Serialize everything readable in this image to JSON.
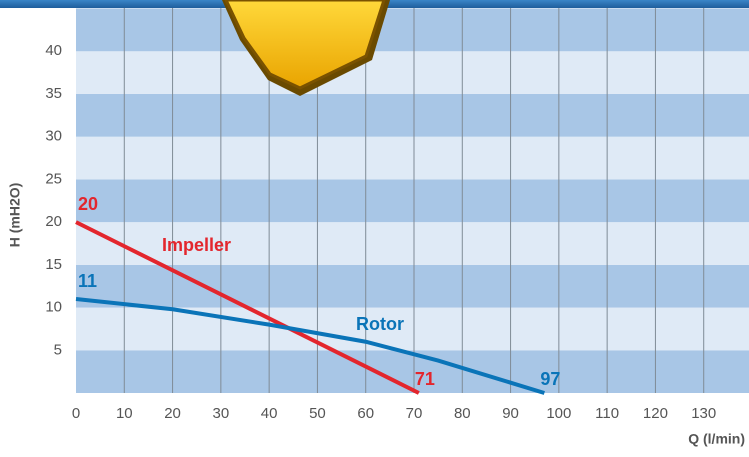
{
  "chart_data": {
    "type": "line",
    "xlabel": "Q (l/min)",
    "ylabel": "H (mH2O)",
    "xlim": [
      0,
      140
    ],
    "xticks": [
      0,
      10,
      20,
      30,
      40,
      50,
      60,
      70,
      80,
      90,
      100,
      110,
      120,
      130
    ],
    "ylim": [
      0,
      46
    ],
    "yticks": [
      5,
      10,
      15,
      20,
      25,
      30,
      35,
      40
    ],
    "grid": true,
    "series": [
      {
        "name": "Impeller",
        "color": "#e3262d",
        "x": [
          0,
          71
        ],
        "values": [
          20,
          0
        ]
      },
      {
        "name": "Rotor",
        "color": "#0a74b8",
        "x": [
          0,
          20,
          40,
          60,
          75,
          97
        ],
        "values": [
          11,
          9.8,
          8,
          6,
          3.8,
          0
        ]
      }
    ]
  }
}
